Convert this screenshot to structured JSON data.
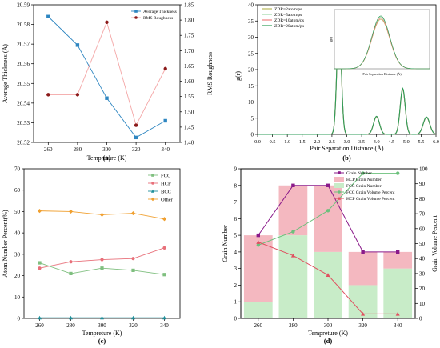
{
  "chart_data": [
    {
      "panel": "(a)",
      "type": "line",
      "xlabel": "Tempreture (K)",
      "ylabel": "Average Thickness (Å)",
      "y2label": "RMS Roughness",
      "categories": [
        260,
        280,
        300,
        320,
        340
      ],
      "xlim": [
        250,
        350
      ],
      "ylim": [
        20.52,
        20.59
      ],
      "y2lim": [
        1.4,
        1.85
      ],
      "yticks": [
        "20.52",
        "20.53",
        "20.54",
        "20.55",
        "20.56",
        "20.57",
        "20.58",
        "20.59"
      ],
      "y2ticks": [
        "1.40",
        "1.45",
        "1.50",
        "1.55",
        "1.60",
        "1.65",
        "1.70",
        "1.75",
        "1.80",
        "1.85"
      ],
      "xticks": [
        "260",
        "280",
        "300",
        "320",
        "340"
      ],
      "legend_position": "top-right",
      "series": [
        {
          "name": "Average Thickness",
          "axis": "left",
          "color": "#2e86c1",
          "marker": "square",
          "values": [
            20.584,
            20.5695,
            20.5425,
            20.5225,
            20.531
          ]
        },
        {
          "name": "RMS Roughness",
          "axis": "right",
          "color": "#8b1a1a",
          "line_color": "#f4a6a6",
          "marker": "circle",
          "values": [
            1.556,
            1.556,
            1.793,
            1.456,
            1.641
          ]
        }
      ]
    },
    {
      "panel": "(b)",
      "type": "line",
      "xlabel": "Pair Separation Distance (Å)",
      "ylabel": "g(r)",
      "xlim": [
        0,
        6
      ],
      "ylim": [
        0,
        40
      ],
      "xticks": [
        "0.0",
        "0.5",
        "1.0",
        "1.5",
        "2.0",
        "2.5",
        "3.0",
        "3.5",
        "4.0",
        "4.5",
        "5.0",
        "5.5",
        "6.0"
      ],
      "yticks": [
        "0",
        "5",
        "10",
        "15",
        "20",
        "25",
        "30",
        "35",
        "40"
      ],
      "legend_position": "top-left",
      "peaks": [
        {
          "r": 2.74,
          "g": 34.5,
          "width": 0.075
        },
        {
          "r": 4.0,
          "g": 5.5,
          "width": 0.1
        },
        {
          "r": 4.88,
          "g": 14.0,
          "width": 0.085
        },
        {
          "r": 5.68,
          "g": 5.3,
          "width": 0.11
        }
      ],
      "series": [
        {
          "name": "ZDR=2atom/ps",
          "color": "#b7b75a"
        },
        {
          "name": "ZDR=5atom/ps",
          "color": "#9ed8a8"
        },
        {
          "name": "ZDR=10atom/ps",
          "color": "#f08080"
        },
        {
          "name": "ZDR=20atom/ps",
          "color": "#2e9e58"
        }
      ],
      "inset": {
        "xlabel": "Pair Separation Distance (Å)",
        "ylabel": "g(r)"
      }
    },
    {
      "panel": "(c)",
      "type": "line",
      "xlabel": "Tempreture (K)",
      "ylabel": "Atom Number Percent(%)",
      "categories": [
        260,
        280,
        300,
        320,
        340
      ],
      "xlim": [
        250,
        350
      ],
      "ylim": [
        0,
        70
      ],
      "xticks": [
        "260",
        "280",
        "300",
        "320",
        "340"
      ],
      "yticks": [
        "0",
        "10",
        "20",
        "30",
        "40",
        "50",
        "60",
        "70"
      ],
      "legend_position": "top-right",
      "series": [
        {
          "name": "FCC",
          "color": "#7fbf7f",
          "marker": "square",
          "values": [
            26.0,
            21.0,
            23.5,
            22.5,
            20.5
          ]
        },
        {
          "name": "HCP",
          "color": "#e8707a",
          "marker": "circle",
          "values": [
            23.5,
            26.5,
            27.5,
            28.0,
            33.0
          ]
        },
        {
          "name": "BCC",
          "color": "#1f8f9a",
          "marker": "triangle",
          "values": [
            0.3,
            0.3,
            0.3,
            0.3,
            0.3
          ]
        },
        {
          "name": "Other",
          "color": "#f0a030",
          "marker": "diamond",
          "values": [
            50.3,
            50.0,
            48.5,
            49.2,
            46.5
          ]
        }
      ]
    },
    {
      "panel": "(d)",
      "type": "bar",
      "xlabel": "Tempreture (K)",
      "ylabel": "Grain Number",
      "y2label": "Grain Volume Percent",
      "categories": [
        "260",
        "280",
        "300",
        "320",
        "340"
      ],
      "ylim": [
        0,
        9
      ],
      "y2lim": [
        0,
        100
      ],
      "yticks": [
        "0",
        "1",
        "2",
        "3",
        "4",
        "5",
        "6",
        "7",
        "8",
        "9"
      ],
      "y2ticks": [
        "0",
        "10",
        "20",
        "30",
        "40",
        "50",
        "60",
        "70",
        "80",
        "90",
        "100"
      ],
      "legend_position": "top-right",
      "series": [
        {
          "name": "Grain Number",
          "type": "line",
          "axis": "left",
          "color": "#8a1a8a",
          "marker": "square",
          "values": [
            5,
            8,
            8,
            4,
            4
          ]
        },
        {
          "name": "HCP Grain Number",
          "type": "bar",
          "axis": "left",
          "color": "#f4b8c0",
          "values": [
            4,
            3,
            4,
            2,
            1
          ]
        },
        {
          "name": "FCC Grain Number",
          "type": "bar",
          "axis": "left",
          "color": "#c8ecc8",
          "values": [
            1,
            5,
            4,
            2,
            3
          ]
        },
        {
          "name": "FCC Grain Volume Percent",
          "type": "line",
          "axis": "right",
          "color": "#6cc07c",
          "marker": "circle",
          "values": [
            49,
            58,
            72,
            97,
            97
          ]
        },
        {
          "name": "HCP Grain Volume Percent",
          "type": "line",
          "axis": "right",
          "color": "#e05060",
          "marker": "triangle",
          "values": [
            51,
            42,
            29,
            3,
            3
          ]
        }
      ]
    }
  ]
}
